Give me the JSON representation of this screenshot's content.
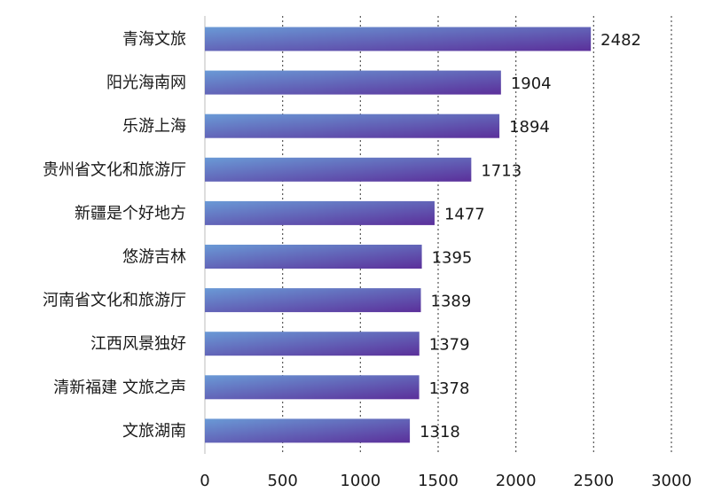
{
  "chart_data": {
    "type": "bar",
    "orientation": "horizontal",
    "categories": [
      "青海文旅",
      "阳光海南网",
      "乐游上海",
      "贵州省文化和旅游厅",
      "新疆是个好地方",
      "悠游吉林",
      "河南省文化和旅游厅",
      "江西风景独好",
      "清新福建 文旅之声",
      "文旅湖南"
    ],
    "values": [
      2482,
      1904,
      1894,
      1713,
      1477,
      1395,
      1389,
      1379,
      1378,
      1318
    ],
    "xlim": [
      0,
      3000
    ],
    "xticks": [
      "0",
      "500",
      "1000",
      "1500",
      "2000",
      "2500",
      "3000"
    ],
    "grid": "vertical-dotted",
    "colors": {
      "bar_start": "#6a9ad6",
      "bar_end": "#5b2f9a",
      "grid": "#555555"
    }
  }
}
